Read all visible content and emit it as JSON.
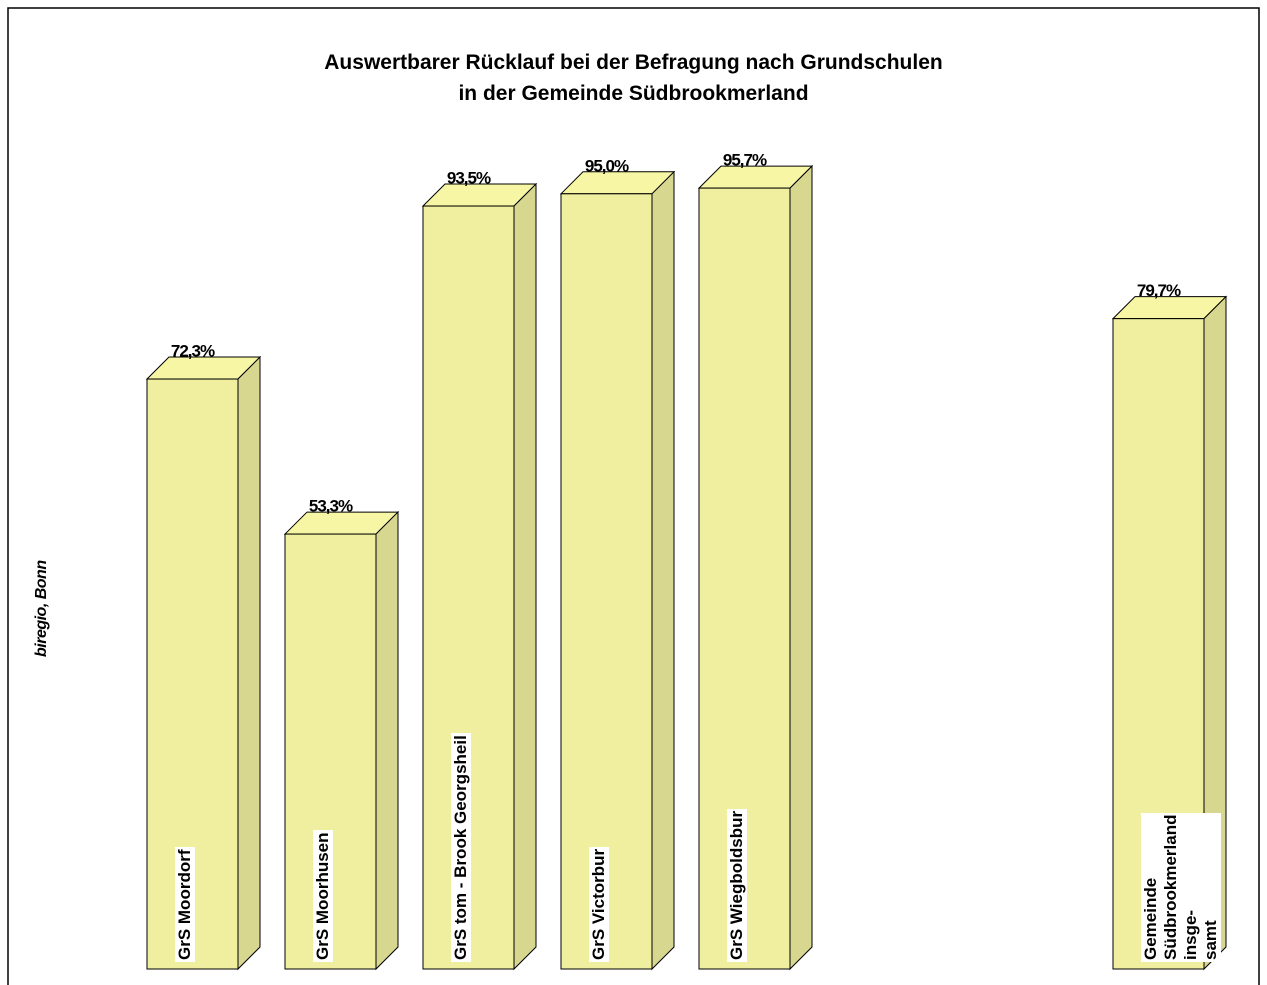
{
  "chart_data": {
    "type": "bar3d",
    "title": "Auswertbarer Rücklauf bei der Befragung nach Grundschulen\nin der Gemeinde Südbrookmerland",
    "source": "biregio, Bonn",
    "categories": [
      "GrS Moordorf",
      "GrS Moorhusen",
      "GrS tom - Brook Georgsheil",
      "GrS Victorbur",
      "GrS Wiegboldsbur",
      null,
      null,
      "Gemeinde Südbrookmerland insge-\nsamt"
    ],
    "values": [
      72.3,
      53.3,
      93.5,
      95.0,
      95.7,
      null,
      null,
      79.7
    ],
    "value_labels": [
      "72,3%",
      "53,3%",
      "93,5%",
      "95,0%",
      "95,7%",
      null,
      null,
      "79,7%"
    ],
    "color": "#efef9f",
    "ylim": [
      0,
      100
    ]
  }
}
